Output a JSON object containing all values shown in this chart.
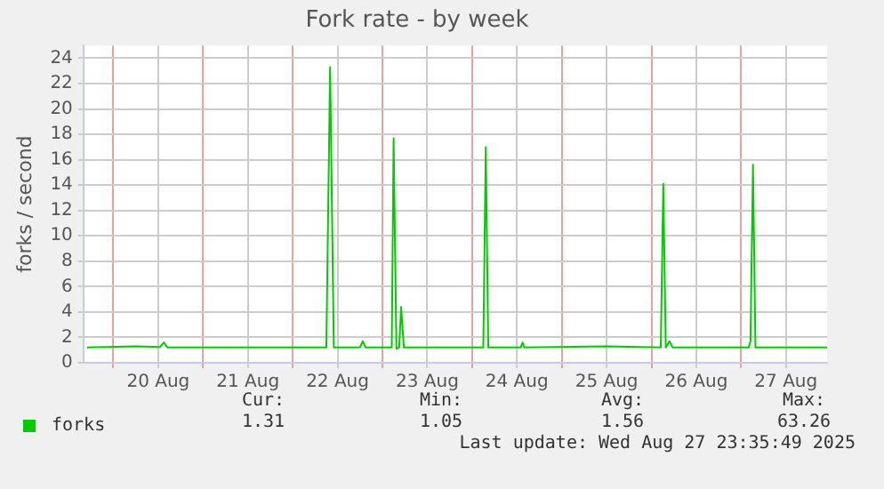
{
  "chart_data": {
    "type": "line",
    "title": "Fork rate - by week",
    "ylabel": "forks / second",
    "x": [
      "2025-08-19T17:00",
      "2025-08-20T06:00",
      "2025-08-20T12:30",
      "2025-08-20T13:30",
      "2025-08-20T14:30",
      "2025-08-21T12:00",
      "2025-08-22T09:00",
      "2025-08-22T10:00",
      "2025-08-22T11:00",
      "2025-08-22T18:00",
      "2025-08-22T18:45",
      "2025-08-22T19:30",
      "2025-08-23T02:30",
      "2025-08-23T03:00",
      "2025-08-23T03:45",
      "2025-08-23T04:30",
      "2025-08-23T05:00",
      "2025-08-23T05:45",
      "2025-08-24T03:00",
      "2025-08-24T03:40",
      "2025-08-24T04:20",
      "2025-08-24T13:00",
      "2025-08-24T13:30",
      "2025-08-24T14:00",
      "2025-08-25T12:00",
      "2025-08-26T02:30",
      "2025-08-26T03:10",
      "2025-08-26T03:50",
      "2025-08-26T04:50",
      "2025-08-26T05:40",
      "2025-08-27T02:00",
      "2025-08-27T02:30",
      "2025-08-27T03:10",
      "2025-08-27T03:50",
      "2025-08-27T12:00",
      "2025-08-27T23:00"
    ],
    "series": [
      {
        "name": "forks",
        "color": "#00cc00",
        "values": [
          1.2,
          1.3,
          1.25,
          1.6,
          1.2,
          1.2,
          1.2,
          23.3,
          1.2,
          1.2,
          1.7,
          1.2,
          1.2,
          17.7,
          1.1,
          1.2,
          4.4,
          1.2,
          1.2,
          17.0,
          1.2,
          1.2,
          1.6,
          1.2,
          1.3,
          1.2,
          14.1,
          1.2,
          1.7,
          1.2,
          1.2,
          1.7,
          15.6,
          1.2,
          1.2,
          1.2
        ]
      }
    ],
    "xlim": [
      "2025-08-19T16:00",
      "2025-08-27T23:00"
    ],
    "xticks": [
      {
        "value": "2025-08-20T00:00",
        "label": null
      },
      {
        "value": "2025-08-20T12:00",
        "label": "20 Aug"
      },
      {
        "value": "2025-08-21T00:00",
        "label": null
      },
      {
        "value": "2025-08-21T12:00",
        "label": "21 Aug"
      },
      {
        "value": "2025-08-22T00:00",
        "label": null
      },
      {
        "value": "2025-08-22T12:00",
        "label": "22 Aug"
      },
      {
        "value": "2025-08-23T00:00",
        "label": null
      },
      {
        "value": "2025-08-23T12:00",
        "label": "23 Aug"
      },
      {
        "value": "2025-08-24T00:00",
        "label": null
      },
      {
        "value": "2025-08-24T12:00",
        "label": "24 Aug"
      },
      {
        "value": "2025-08-25T00:00",
        "label": null
      },
      {
        "value": "2025-08-25T12:00",
        "label": "25 Aug"
      },
      {
        "value": "2025-08-26T00:00",
        "label": null
      },
      {
        "value": "2025-08-26T12:00",
        "label": "26 Aug"
      },
      {
        "value": "2025-08-27T00:00",
        "label": null
      },
      {
        "value": "2025-08-27T12:00",
        "label": "27 Aug"
      }
    ],
    "ylim": [
      0,
      25
    ],
    "yticks": [
      0,
      2,
      4,
      6,
      8,
      10,
      12,
      14,
      16,
      18,
      20,
      22,
      24
    ],
    "grid": true,
    "legend": "bottom left",
    "marker": "none",
    "line_style": "solid",
    "annotations": [
      "Cur:",
      "Min:",
      "Avg:",
      "Max:",
      "1.31",
      "1.05",
      "1.56",
      "63.26",
      "Last update: Wed Aug 27 23:35:49 2025"
    ]
  }
}
